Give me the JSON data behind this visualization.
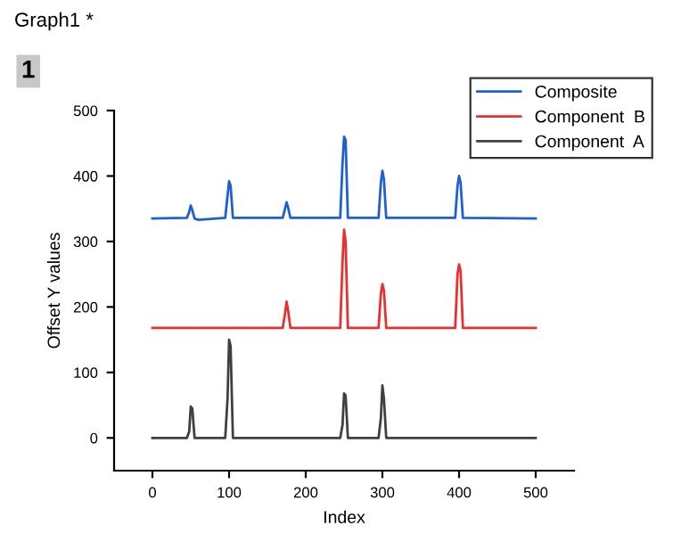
{
  "chart_data": {
    "type": "line",
    "title": "Graph1 *",
    "annotations": [
      "1"
    ],
    "xlabel": "Index",
    "ylabel": "Offset Y values",
    "xlim": [
      -50,
      550
    ],
    "xticks": [
      0,
      100,
      200,
      300,
      400,
      500
    ],
    "ylim": [
      -50,
      500
    ],
    "yticks": [
      0,
      100,
      200,
      300,
      400,
      500
    ],
    "grid": false,
    "legend": "top right",
    "marker": "none",
    "line_style": "solid",
    "series": [
      {
        "name": "Composite",
        "color": "#1f5fd6",
        "x": [
          0,
          45,
          48,
          50,
          52,
          55,
          60,
          95,
          98,
          100,
          102,
          105,
          170,
          173,
          175,
          177,
          180,
          245,
          248,
          250,
          252,
          255,
          295,
          298,
          300,
          302,
          305,
          395,
          398,
          400,
          402,
          405,
          500
        ],
        "values": [
          335,
          336,
          345,
          355,
          348,
          335,
          333,
          336,
          370,
          392,
          385,
          336,
          336,
          350,
          360,
          352,
          336,
          336,
          420,
          460,
          455,
          336,
          336,
          390,
          408,
          395,
          336,
          336,
          385,
          400,
          390,
          336,
          335
        ]
      },
      {
        "name": "Component  B",
        "color": "#e83030",
        "x": [
          0,
          170,
          173,
          175,
          177,
          180,
          245,
          248,
          250,
          252,
          255,
          295,
          298,
          300,
          302,
          305,
          395,
          398,
          400,
          402,
          405,
          500
        ],
        "values": [
          168,
          168,
          190,
          208,
          195,
          168,
          168,
          270,
          318,
          300,
          168,
          168,
          220,
          235,
          225,
          168,
          168,
          250,
          265,
          255,
          168,
          168
        ]
      },
      {
        "name": "Component  A",
        "color": "#404040",
        "x": [
          0,
          45,
          48,
          50,
          52,
          55,
          95,
          98,
          100,
          102,
          105,
          245,
          248,
          250,
          252,
          255,
          295,
          298,
          300,
          302,
          305,
          500
        ],
        "values": [
          0,
          0,
          10,
          48,
          45,
          0,
          0,
          60,
          150,
          140,
          0,
          0,
          20,
          68,
          65,
          0,
          0,
          30,
          80,
          60,
          0,
          0
        ]
      }
    ]
  }
}
